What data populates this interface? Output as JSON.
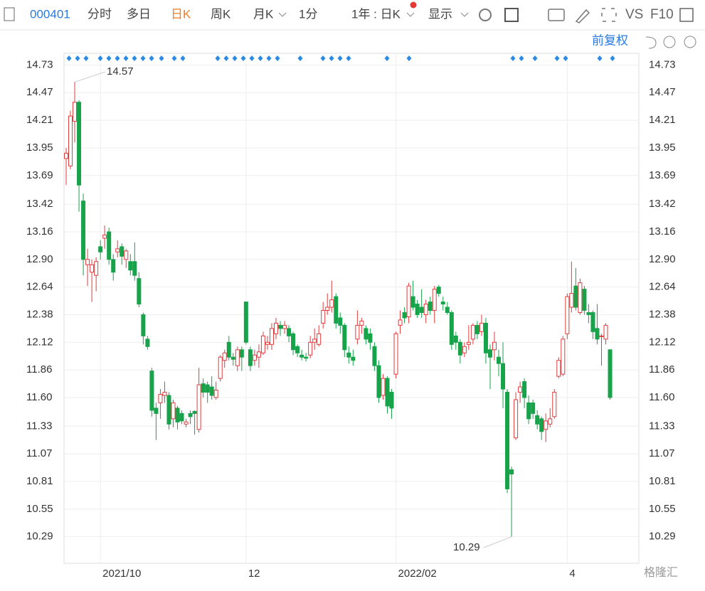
{
  "toolbar": {
    "code": "000401",
    "tabs": [
      "分时",
      "多日",
      "日K",
      "周K",
      "月K",
      "1分",
      "1年 : 日K",
      "显示"
    ],
    "active": 2,
    "vs": "VS",
    "f10": "F10",
    "adjust": "前复权"
  },
  "watermark": "格隆汇",
  "chart_data": {
    "type": "candlestick",
    "categories": [
      null,
      null,
      null,
      null,
      null,
      null,
      null,
      null,
      "2021/10",
      null,
      null,
      null,
      null,
      null,
      null,
      null,
      null,
      null,
      null,
      null,
      null,
      null,
      null,
      null,
      null,
      null,
      null,
      null,
      null,
      null,
      null,
      null,
      null,
      null,
      null,
      null,
      null,
      null,
      null,
      null,
      null,
      null,
      "12",
      null,
      null,
      null,
      null,
      null,
      null,
      null,
      null,
      null,
      null,
      null,
      null,
      null,
      null,
      null,
      null,
      null,
      null,
      null,
      null,
      null,
      null,
      null,
      null,
      null,
      null,
      null,
      null,
      null,
      null,
      null,
      null,
      null,
      null,
      "2022/02",
      null,
      null,
      null,
      null,
      null,
      null,
      null,
      null,
      null,
      null,
      null,
      null,
      null,
      null,
      null,
      null,
      null,
      null,
      null,
      null,
      null,
      null,
      null,
      null,
      null,
      null,
      null,
      null,
      null,
      null,
      null,
      null,
      null,
      null,
      null,
      null,
      null,
      null,
      null,
      "4",
      null,
      null,
      null,
      null,
      null,
      null,
      null,
      null,
      null,
      null
    ],
    "open": [
      13.85,
      13.78,
      14.2,
      14.38,
      13.45,
      12.85,
      12.78,
      12.75,
      13.02,
      13.1,
      13.16,
      12.9,
      12.97,
      13.02,
      12.9,
      12.88,
      12.88,
      12.72,
      12.38,
      12.15,
      11.85,
      11.5,
      11.55,
      11.62,
      11.62,
      11.4,
      11.5,
      11.45,
      11.35,
      11.45,
      11.47,
      11.3,
      11.73,
      11.72,
      11.7,
      11.6,
      11.78,
      11.95,
      12.12,
      11.98,
      11.9,
      12.05,
      12.5,
      12.05,
      11.95,
      11.98,
      12.02,
      12.1,
      12.1,
      12.2,
      12.28,
      12.25,
      12.25,
      12.2,
      12.08,
      12.0,
      11.98,
      12.0,
      12.12,
      12.1,
      12.3,
      12.42,
      12.45,
      12.55,
      12.35,
      12.28,
      12.02,
      11.98,
      12.15,
      12.28,
      12.25,
      12.2,
      12.08,
      11.9,
      11.62,
      11.78,
      11.65,
      11.82,
      12.28,
      12.4,
      12.36,
      12.55,
      12.48,
      12.45,
      12.38,
      12.5,
      12.42,
      12.64,
      12.5,
      12.45,
      12.4,
      12.18,
      12.12,
      12.02,
      12.1,
      12.15,
      12.28,
      12.22,
      12.3,
      12.05,
      12.05,
      11.98,
      11.92,
      11.65,
      10.92,
      11.22,
      11.65,
      11.75,
      11.55,
      11.55,
      11.43,
      11.4,
      11.3,
      11.35,
      11.42,
      11.8,
      11.82,
      12.2,
      12.45,
      12.65,
      12.4,
      12.62,
      12.4,
      12.4,
      12.25,
      12.18,
      12.15,
      12.05
    ],
    "high": [
      13.95,
      14.3,
      14.57,
      14.4,
      13.52,
      13.0,
      12.9,
      12.92,
      13.08,
      13.22,
      13.2,
      12.95,
      13.08,
      13.05,
      13.0,
      12.95,
      13.06,
      12.78,
      12.4,
      12.18,
      11.88,
      11.55,
      11.68,
      11.75,
      11.65,
      11.58,
      11.52,
      11.48,
      11.4,
      11.48,
      11.48,
      11.88,
      11.78,
      11.75,
      11.8,
      11.75,
      12.0,
      12.05,
      12.18,
      12.02,
      12.08,
      12.08,
      12.5,
      12.08,
      12.05,
      12.1,
      12.22,
      12.18,
      12.3,
      12.35,
      12.32,
      12.32,
      12.28,
      12.22,
      12.1,
      12.05,
      12.02,
      12.18,
      12.25,
      12.28,
      12.5,
      12.58,
      12.7,
      12.58,
      12.4,
      12.3,
      12.08,
      12.05,
      12.42,
      12.35,
      12.28,
      12.25,
      12.12,
      11.95,
      11.82,
      11.8,
      11.68,
      12.22,
      12.42,
      12.45,
      12.68,
      12.7,
      12.52,
      12.62,
      12.52,
      12.55,
      12.65,
      12.66,
      12.55,
      12.5,
      12.42,
      12.22,
      12.15,
      12.12,
      12.28,
      12.3,
      12.32,
      12.38,
      12.35,
      12.1,
      12.22,
      12.05,
      12.12,
      11.68,
      10.95,
      11.65,
      11.75,
      11.78,
      11.62,
      11.58,
      11.48,
      11.42,
      11.45,
      11.5,
      11.68,
      11.98,
      12.18,
      12.58,
      12.88,
      12.82,
      12.72,
      12.65,
      12.48,
      12.42,
      12.48,
      12.2,
      12.3,
      12.05
    ],
    "low": [
      13.6,
      13.75,
      14.0,
      13.35,
      12.75,
      12.65,
      12.5,
      12.6,
      12.9,
      13.0,
      12.85,
      12.7,
      12.92,
      12.85,
      12.82,
      12.75,
      12.7,
      12.45,
      12.1,
      12.05,
      11.42,
      11.2,
      11.4,
      11.55,
      11.3,
      11.32,
      11.3,
      11.35,
      11.32,
      11.35,
      11.25,
      11.27,
      11.6,
      11.55,
      11.58,
      11.58,
      11.75,
      11.88,
      11.95,
      11.9,
      11.85,
      11.85,
      12.1,
      11.85,
      11.9,
      11.88,
      12.0,
      12.05,
      12.05,
      12.15,
      12.18,
      12.2,
      12.12,
      12.0,
      11.98,
      11.95,
      11.94,
      11.97,
      12.05,
      12.08,
      12.25,
      12.38,
      12.4,
      12.25,
      12.2,
      11.98,
      11.92,
      11.9,
      12.1,
      12.2,
      12.1,
      12.05,
      11.85,
      11.55,
      11.58,
      11.45,
      11.4,
      11.78,
      12.2,
      12.3,
      12.3,
      12.42,
      12.35,
      12.35,
      12.3,
      12.38,
      12.3,
      12.55,
      12.42,
      12.38,
      12.05,
      12.05,
      11.92,
      11.98,
      12.05,
      12.1,
      12.15,
      12.18,
      11.92,
      11.68,
      11.95,
      11.8,
      11.5,
      10.7,
      10.29,
      11.2,
      11.55,
      11.5,
      11.35,
      11.4,
      11.3,
      11.2,
      11.18,
      11.32,
      11.4,
      11.78,
      11.8,
      12.15,
      12.4,
      12.42,
      12.38,
      12.38,
      12.3,
      12.15,
      12.1,
      11.9,
      12.1,
      11.58
    ],
    "close": [
      13.9,
      14.25,
      14.38,
      13.6,
      12.9,
      12.9,
      12.85,
      12.88,
      12.97,
      13.13,
      12.9,
      12.78,
      13.0,
      12.93,
      12.98,
      12.8,
      12.75,
      12.48,
      12.18,
      12.08,
      11.48,
      11.45,
      11.63,
      11.65,
      11.35,
      11.55,
      11.37,
      11.38,
      11.37,
      11.42,
      11.45,
      11.72,
      11.65,
      11.65,
      11.62,
      11.67,
      11.98,
      12.02,
      11.98,
      11.96,
      12.05,
      11.98,
      12.12,
      11.9,
      12.0,
      12.03,
      12.18,
      12.12,
      12.25,
      12.3,
      12.25,
      12.28,
      12.18,
      12.05,
      12.02,
      11.98,
      11.97,
      12.12,
      12.15,
      12.2,
      12.42,
      12.45,
      12.52,
      12.3,
      12.28,
      12.05,
      11.98,
      11.95,
      12.28,
      12.32,
      12.15,
      12.12,
      11.9,
      11.6,
      11.78,
      11.52,
      11.5,
      12.2,
      12.33,
      12.35,
      12.65,
      12.45,
      12.38,
      12.4,
      12.48,
      12.42,
      12.62,
      12.58,
      12.48,
      12.4,
      12.1,
      12.12,
      12.0,
      12.08,
      12.12,
      12.28,
      12.2,
      12.3,
      12.02,
      11.98,
      12.12,
      11.92,
      11.68,
      10.74,
      10.88,
      11.58,
      11.7,
      11.6,
      11.4,
      11.45,
      11.35,
      11.28,
      11.38,
      11.4,
      11.65,
      11.95,
      12.15,
      12.55,
      12.58,
      12.45,
      12.68,
      12.42,
      12.38,
      12.22,
      12.15,
      12.18,
      12.28,
      11.6
    ],
    "up_color": "#e23b3b",
    "down_color": "#17a34a",
    "ylim": [
      10.04,
      14.84
    ],
    "yticks": [
      14.73,
      14.47,
      14.21,
      13.95,
      13.69,
      13.42,
      13.16,
      {
        "value": 12.9,
        "label": "12.90"
      },
      12.64,
      12.38,
      12.12,
      11.86,
      {
        "value": 11.6,
        "label": "11.60"
      },
      11.33,
      11.07,
      10.81,
      10.55,
      10.29
    ],
    "grid": true
  }
}
